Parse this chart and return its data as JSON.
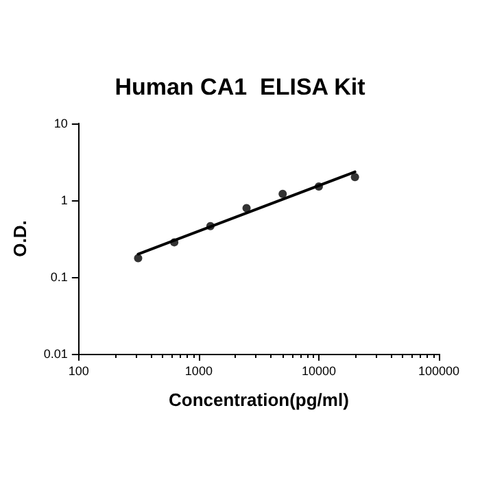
{
  "chart_data": {
    "type": "scatter",
    "title": "Human CA1  ELISA Kit",
    "xlabel": "Concentration(pg/ml)",
    "ylabel": "O.D.",
    "log": "xy",
    "grid": false,
    "marker": "circle",
    "x": [
      312.5,
      625,
      1250,
      2500,
      5000,
      10000,
      20000
    ],
    "series": [
      {
        "color": "#000000",
        "values": [
          0.176,
          0.283,
          0.46,
          0.79,
          1.21,
          1.51,
          2.0
        ]
      },
      {
        "type": "line",
        "color": "#000000",
        "marker": "none",
        "line_style": "solid",
        "x": [
          312.5,
          20000
        ],
        "values": [
          0.199,
          2.34
        ]
      }
    ],
    "xlim": [
      100,
      100000
    ],
    "xticks": [
      100,
      1000,
      10000,
      100000
    ],
    "ylim": [
      0.01,
      10
    ],
    "yticks": [
      0.01,
      0.1,
      1,
      10
    ]
  }
}
